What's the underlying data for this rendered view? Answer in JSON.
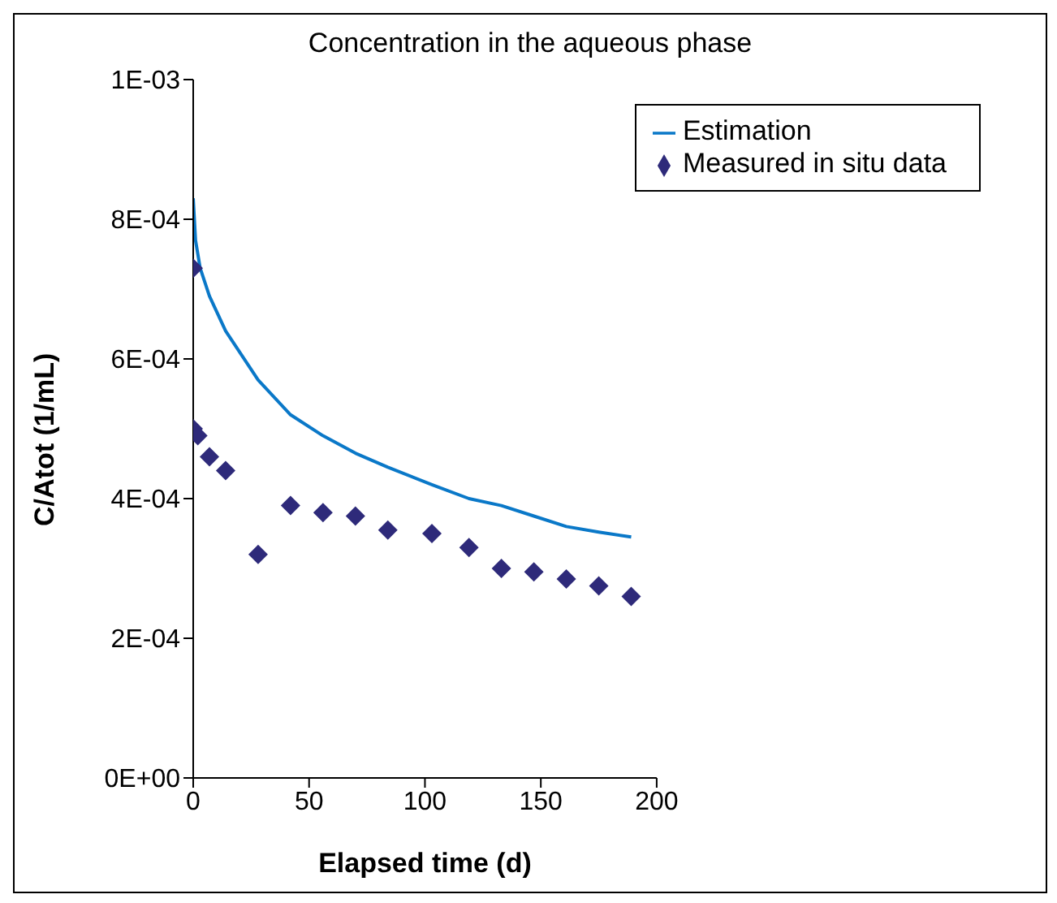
{
  "chart_data": {
    "type": "line",
    "title": "Concentration in the aqueous phase",
    "xlabel": "Elapsed time (d)",
    "ylabel": "C/Atot (1/mL)",
    "series": [
      {
        "name": "Estimation",
        "type": "line",
        "color": "#0a78c8",
        "marker": "none",
        "x": [
          0,
          1,
          3,
          7,
          14,
          28,
          42,
          56,
          70,
          84,
          103,
          119,
          133,
          147,
          161,
          175,
          189
        ],
        "values": [
          0.00083,
          0.00077,
          0.00073,
          0.00069,
          0.00064,
          0.00057,
          0.00052,
          0.00049,
          0.000465,
          0.000445,
          0.00042,
          0.0004,
          0.00039,
          0.000375,
          0.00036,
          0.000352,
          0.000345
        ]
      },
      {
        "name": "Measured in situ data",
        "type": "scatter",
        "color": "#2e2a7a",
        "marker": "diamond",
        "x": [
          0,
          0,
          2,
          7,
          14,
          28,
          42,
          56,
          70,
          84,
          103,
          119,
          133,
          147,
          161,
          175,
          189
        ],
        "values": [
          0.00073,
          0.0005,
          0.00049,
          0.00046,
          0.00044,
          0.00032,
          0.00039,
          0.00038,
          0.000375,
          0.000355,
          0.00035,
          0.00033,
          0.0003,
          0.000295,
          0.000285,
          0.000275,
          0.00026
        ]
      }
    ],
    "xlim": [
      0,
      200
    ],
    "xticks": [
      0,
      50,
      100,
      150,
      200
    ],
    "ylim": [
      0,
      0.001
    ],
    "yticks": [
      {
        "value": 0,
        "label": "0E+00"
      },
      {
        "value": 0.0002,
        "label": "2E-04"
      },
      {
        "value": 0.0004,
        "label": "4E-04"
      },
      {
        "value": 0.0006,
        "label": "6E-04"
      },
      {
        "value": 0.0008,
        "label": "8E-04"
      },
      {
        "value": 0.001,
        "label": "1E-03"
      }
    ],
    "grid": false,
    "legend": "top right"
  }
}
